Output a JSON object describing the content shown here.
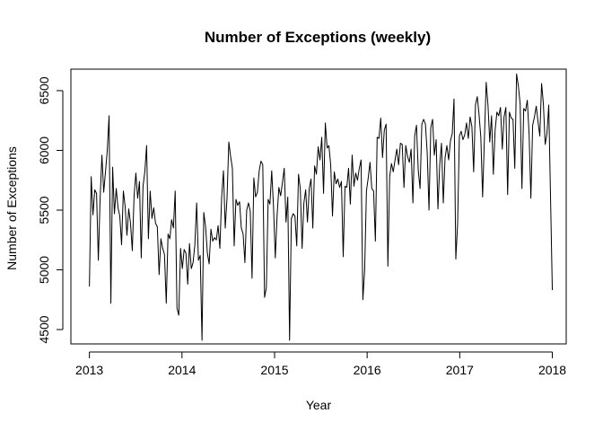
{
  "chart_data": {
    "type": "line",
    "title": "Number of Exceptions (weekly)",
    "xlabel": "Year",
    "ylabel": "Number of Exceptions",
    "xlim": [
      2012.8,
      2018.15
    ],
    "ylim": [
      4380,
      6680
    ],
    "x_ticks": [
      2013,
      2014,
      2015,
      2016,
      2017,
      2018
    ],
    "x_tick_labels": [
      "2013",
      "2014",
      "2015",
      "2016",
      "2017",
      "2018"
    ],
    "y_ticks": [
      4500,
      5000,
      5500,
      6000,
      6500
    ],
    "y_tick_labels": [
      "4500",
      "5000",
      "5500",
      "6000",
      "6500"
    ],
    "grid": false,
    "legend": "none",
    "line_color": "#000000",
    "x_start": 2013.0,
    "x_end": 2018.0,
    "values": [
      4860,
      5780,
      5460,
      5670,
      5640,
      5080,
      5600,
      5960,
      5650,
      5820,
      6000,
      6290,
      4720,
      5860,
      5470,
      5680,
      5520,
      5450,
      5210,
      5660,
      5530,
      5290,
      5510,
      5390,
      5160,
      5620,
      5810,
      5600,
      5740,
      5100,
      5700,
      5820,
      6040,
      5260,
      5660,
      5430,
      5520,
      5390,
      5360,
      4960,
      5260,
      5180,
      5130,
      4720,
      5300,
      5260,
      5420,
      5350,
      5660,
      4680,
      4620,
      5180,
      5010,
      5170,
      5140,
      4880,
      5220,
      5010,
      5060,
      5210,
      5560,
      5080,
      5120,
      4410,
      5480,
      5360,
      5140,
      5050,
      5340,
      5240,
      5270,
      5250,
      5370,
      5180,
      5610,
      5830,
      5350,
      5600,
      6070,
      5950,
      5850,
      5200,
      5590,
      5540,
      5570,
      5350,
      5300,
      5060,
      5500,
      5560,
      5490,
      4930,
      5770,
      5610,
      5650,
      5830,
      5910,
      5880,
      4770,
      4850,
      5590,
      5550,
      5830,
      5530,
      5100,
      5450,
      5690,
      5620,
      5730,
      5850,
      5400,
      5610,
      4410,
      5430,
      5470,
      5450,
      5200,
      5800,
      5680,
      5180,
      5560,
      5670,
      5400,
      5680,
      5760,
      5350,
      5870,
      5800,
      6030,
      5920,
      6110,
      5640,
      6230,
      6020,
      6040,
      5880,
      5450,
      5820,
      5720,
      5760,
      5690,
      5740,
      5110,
      5700,
      5690,
      5850,
      5550,
      5960,
      5700,
      5810,
      5750,
      5850,
      5920,
      4750,
      5000,
      5660,
      5770,
      5900,
      5680,
      5660,
      5240,
      6110,
      6100,
      6270,
      5940,
      6170,
      6220,
      5030,
      5780,
      5890,
      5820,
      5920,
      6010,
      5880,
      6060,
      6050,
      5690,
      6040,
      5950,
      5900,
      6010,
      5560,
      6120,
      6210,
      5830,
      5680,
      6220,
      6260,
      6220,
      5980,
      5500,
      6190,
      6260,
      5960,
      6090,
      5510,
      5880,
      6060,
      5560,
      5940,
      6040,
      5920,
      6080,
      6140,
      6430,
      5090,
      5380,
      6120,
      6160,
      6090,
      6130,
      6230,
      6100,
      6280,
      6200,
      5820,
      6380,
      6450,
      6300,
      6110,
      5610,
      6100,
      6570,
      6380,
      6070,
      6290,
      5800,
      6170,
      6320,
      6290,
      6360,
      6010,
      6280,
      6360,
      5630,
      6320,
      6270,
      6260,
      5850,
      6640,
      6540,
      6390,
      5680,
      6350,
      6330,
      6420,
      6140,
      5600,
      6210,
      6280,
      6370,
      6240,
      6120,
      6560,
      6390,
      6050,
      6140,
      6380,
      5610,
      4830
    ]
  }
}
